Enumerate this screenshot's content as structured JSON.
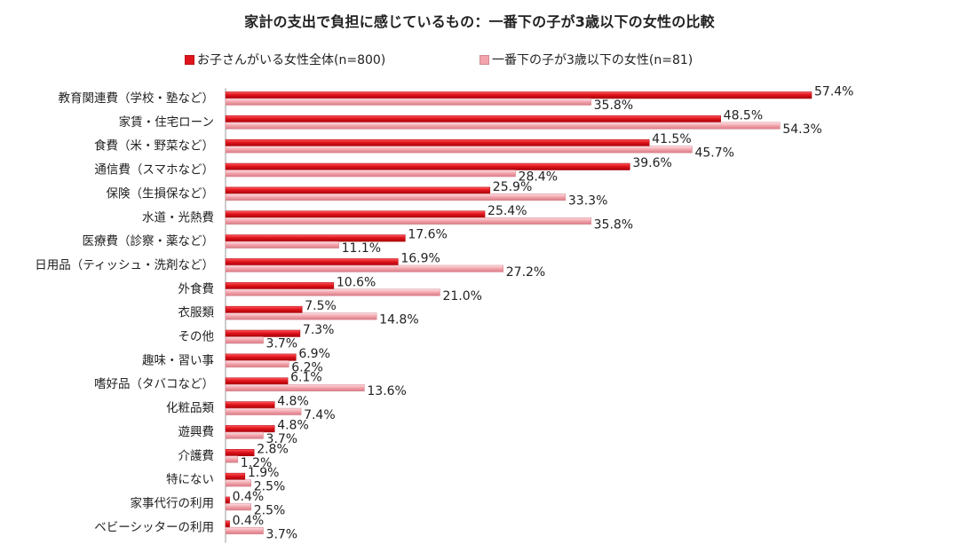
{
  "chart_data": {
    "type": "bar",
    "orientation": "horizontal",
    "title": "家計の支出で負担に感じているもの：一番下の子が3歳以下の女性の比較",
    "legend_position": "top",
    "grid": false,
    "xlim": [
      0,
      60
    ],
    "value_suffix": "%",
    "categories": [
      "教育関連費（学校・塾など）",
      "家賃・住宅ローン",
      "食費（米・野菜など）",
      "通信費（スマホなど）",
      "保険（生損保など）",
      "水道・光熱費",
      "医療費（診察・薬など）",
      "日用品（ティッシュ・洗剤など）",
      "外食費",
      "衣服類",
      "その他",
      "趣味・習い事",
      "嗜好品（タバコなど）",
      "化粧品類",
      "遊興費",
      "介護費",
      "特にない",
      "家事代行の利用",
      "ベビーシッターの利用"
    ],
    "series": [
      {
        "name": "お子さんがいる女性全体(n=800)",
        "color": "#e0141c",
        "values": [
          57.4,
          48.5,
          41.5,
          39.6,
          25.9,
          25.4,
          17.6,
          16.9,
          10.6,
          7.5,
          7.3,
          6.9,
          6.1,
          4.8,
          4.8,
          2.8,
          1.9,
          0.4,
          0.4
        ]
      },
      {
        "name": "一番下の子が3歳以下の女性(n=81)",
        "color": "#f2a3ab",
        "values": [
          35.8,
          54.3,
          45.7,
          28.4,
          33.3,
          35.8,
          11.1,
          27.2,
          21.0,
          14.8,
          3.7,
          6.2,
          13.6,
          7.4,
          3.7,
          1.2,
          2.5,
          2.5,
          3.7
        ]
      }
    ]
  }
}
